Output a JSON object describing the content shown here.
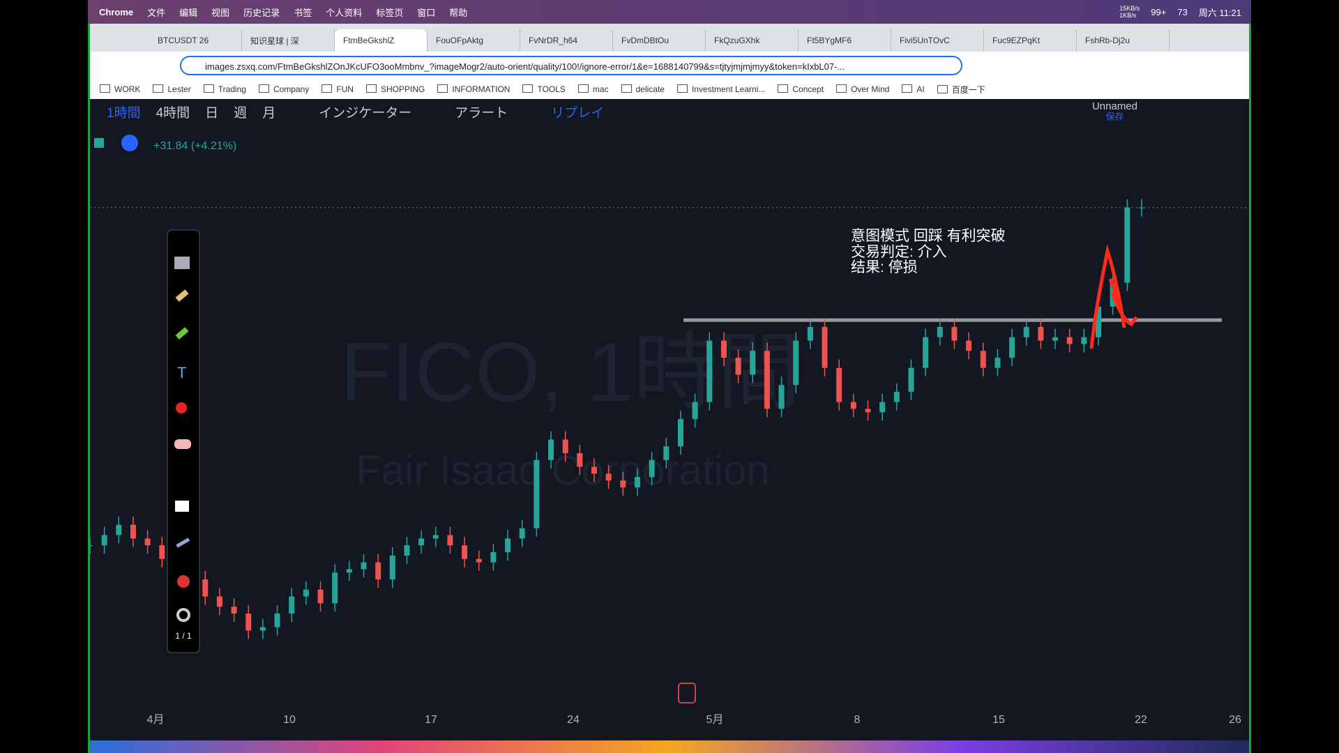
{
  "menubar": {
    "app": "Chrome",
    "items": [
      "文件",
      "编辑",
      "视图",
      "历史记录",
      "书签",
      "个人资料",
      "标签页",
      "窗口",
      "帮助"
    ],
    "speed": [
      "15KB/s",
      "1KB/s"
    ],
    "badges": [
      "99+",
      "73"
    ],
    "clock": "周六 11:21"
  },
  "tabs": [
    "BTCUSDT 26",
    "知识星球 | 深",
    "FtmBeGkshlZ",
    "FouOFpAktg",
    "FvNrDR_h64",
    "FvDmDBtOu",
    "FkQzuGXhk",
    "Ft5BYgMF6",
    "Fivi5UnTOvC",
    "Fuc9EZPqKt",
    "FshRb-Dj2u"
  ],
  "url": "images.zsxq.com/FtmBeGkshlZOnJKcUFO3ooMmbnv_?imageMogr2/auto-orient/quality/100!/ignore-error/1&e=1688140799&s=tjtyjmjmjmyy&token=kIxbL07-...",
  "bookmarks": [
    "WORK",
    "Lester",
    "Trading",
    "Company",
    "FUN",
    "SHOPPING",
    "INFORMATION",
    "TOOLS",
    "mac",
    "delicate",
    "Investment Learni...",
    "Concept",
    "Over Mind",
    "AI",
    "百度一下"
  ],
  "toolbar": {
    "intervals": [
      "1時間",
      "4時間",
      "日",
      "週",
      "月"
    ],
    "indicators": "インジケーター",
    "alert": "アラート",
    "replay": "リプレイ",
    "layout": "Unnamed",
    "save": "保存"
  },
  "chart": {
    "change": "+31.84 (+4.21%)",
    "watermark_symbol": "FICO, 1時間",
    "watermark_name": "Fair Isaac Corporation",
    "annotation": [
      "意图模式 回踩 有利突破",
      "交易判定: 介入",
      "结果: 停损"
    ],
    "x_labels": [
      "4月",
      "10",
      "17",
      "24",
      "5月",
      "8",
      "15",
      "22",
      "26"
    ],
    "ylim": [
      660,
      800
    ],
    "resistance": 755,
    "up_color": "#26a69a",
    "down_color": "#ef5350",
    "drawing_page": "1 / 1",
    "prices": [
      689,
      692,
      695,
      691,
      689,
      685,
      681,
      679,
      674,
      671,
      669,
      664,
      665,
      669,
      674,
      676,
      672,
      681,
      682,
      684,
      679,
      686,
      689,
      691,
      692,
      689,
      685,
      684,
      687,
      691,
      694,
      714,
      720,
      716,
      712,
      710,
      708,
      706,
      709,
      714,
      718,
      726,
      731,
      749,
      744,
      739,
      746,
      729,
      736,
      749,
      753,
      741,
      731,
      729,
      728,
      731,
      734,
      741,
      750,
      753,
      749,
      746,
      741,
      744,
      750,
      753,
      749,
      750,
      748,
      750,
      759,
      766,
      788,
      788
    ]
  }
}
